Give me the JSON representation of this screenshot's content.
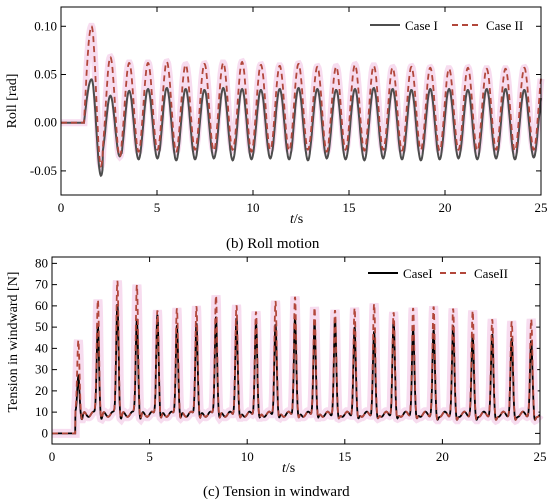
{
  "figure": {
    "panel_b_tag": "(b)",
    "panel_b_caption": "Roll motion",
    "panel_c_tag": "(c)",
    "panel_c_caption": "Tension in windward",
    "colors": {
      "case1": "#4d4d4d",
      "case1_c": "#000000",
      "case2": "#b2473b",
      "case2_fill": "#f7dcef"
    }
  },
  "chart_data": [
    {
      "type": "line",
      "panel": "b",
      "title": "Roll motion",
      "xlabel_italic": "t",
      "xlabel_unit": "/s",
      "ylabel": "Roll [rad]",
      "xlim": [
        0,
        25
      ],
      "ylim": [
        -0.075,
        0.12
      ],
      "xticks": [
        0,
        5,
        10,
        15,
        20,
        25
      ],
      "yticks": [
        -0.05,
        0.0,
        0.05,
        0.1
      ],
      "ytick_labels": [
        "-0.05",
        "0.00",
        "0.05",
        "0.10"
      ],
      "legend_position": "top-right",
      "series": [
        {
          "name": "Case I",
          "style": "solid",
          "onset": 1.2,
          "period": 0.98,
          "peak_times": [
            1.6
          ],
          "peaks": [
            0.045,
            0.028,
            0.033,
            0.035,
            0.036,
            0.035,
            0.034,
            0.036,
            0.035,
            0.034,
            0.035,
            0.036,
            0.035,
            0.034,
            0.035,
            0.036,
            0.035,
            0.034,
            0.035,
            0.035,
            0.034,
            0.035,
            0.035,
            0.034,
            0.034
          ],
          "troughs": [
            -0.055,
            -0.035,
            -0.038,
            -0.037,
            -0.039,
            -0.038,
            -0.037,
            -0.039,
            -0.038,
            -0.037,
            -0.038,
            -0.039,
            -0.037,
            -0.038,
            -0.039,
            -0.037,
            -0.038,
            -0.039,
            -0.038,
            -0.037,
            -0.038,
            -0.037,
            -0.038,
            -0.036,
            -0.035
          ]
        },
        {
          "name": "Case II",
          "style": "dashed",
          "onset": 1.2,
          "period": 0.98,
          "peak_times": [
            1.7
          ],
          "peaks": [
            0.1,
            0.068,
            0.062,
            0.062,
            0.063,
            0.06,
            0.061,
            0.062,
            0.063,
            0.06,
            0.059,
            0.061,
            0.058,
            0.058,
            0.06,
            0.059,
            0.057,
            0.058,
            0.057,
            0.056,
            0.057,
            0.056,
            0.056,
            0.057,
            0.056
          ],
          "troughs": [
            -0.045,
            -0.035,
            -0.03,
            -0.028,
            -0.03,
            -0.028,
            -0.029,
            -0.028,
            -0.03,
            -0.028,
            -0.029,
            -0.028,
            -0.03,
            -0.028,
            -0.029,
            -0.028,
            -0.029,
            -0.028,
            -0.029,
            -0.028,
            -0.029,
            -0.028,
            -0.029,
            -0.028,
            -0.028
          ]
        }
      ]
    },
    {
      "type": "line",
      "panel": "c",
      "title": "Tension in windward",
      "xlabel_italic": "t",
      "xlabel_unit": "/s",
      "ylabel": "Tension in windward [N]",
      "xlim": [
        0,
        25
      ],
      "ylim": [
        -5,
        83
      ],
      "xticks": [
        0,
        5,
        10,
        15,
        20,
        25
      ],
      "yticks": [
        0,
        10,
        20,
        30,
        40,
        50,
        60,
        70,
        80
      ],
      "legend_position": "top-right",
      "baseline": {
        "before_onset": 0,
        "onset": 1.2,
        "level": 9
      },
      "series": [
        {
          "name": "CaseI",
          "style": "solid",
          "spike_times": [
            1.35,
            2.35,
            3.35,
            4.35,
            5.4,
            6.4,
            7.4,
            8.4,
            9.45,
            10.45,
            11.45,
            12.45,
            13.45,
            14.5,
            15.5,
            16.5,
            17.5,
            18.5,
            19.55,
            20.55,
            21.55,
            22.55,
            23.55,
            24.55
          ],
          "spike_values": [
            28,
            52,
            62,
            55,
            57,
            52,
            53,
            56,
            55,
            53,
            52,
            55,
            53,
            54,
            50,
            48,
            53,
            49,
            48,
            50,
            46,
            46,
            44,
            43
          ]
        },
        {
          "name": "CaseII",
          "style": "dashed",
          "spike_times": [
            1.35,
            2.35,
            3.35,
            4.35,
            5.4,
            6.4,
            7.4,
            8.4,
            9.45,
            10.45,
            11.45,
            12.45,
            13.45,
            14.5,
            15.5,
            16.5,
            17.5,
            18.5,
            19.55,
            20.55,
            21.55,
            22.55,
            23.55,
            24.55
          ],
          "spike_values": [
            45,
            64,
            73,
            71,
            59,
            60,
            61,
            66,
            61,
            58,
            63,
            65,
            60,
            58,
            59,
            61,
            57,
            59,
            59,
            58,
            57,
            53,
            52,
            53
          ]
        }
      ]
    }
  ]
}
